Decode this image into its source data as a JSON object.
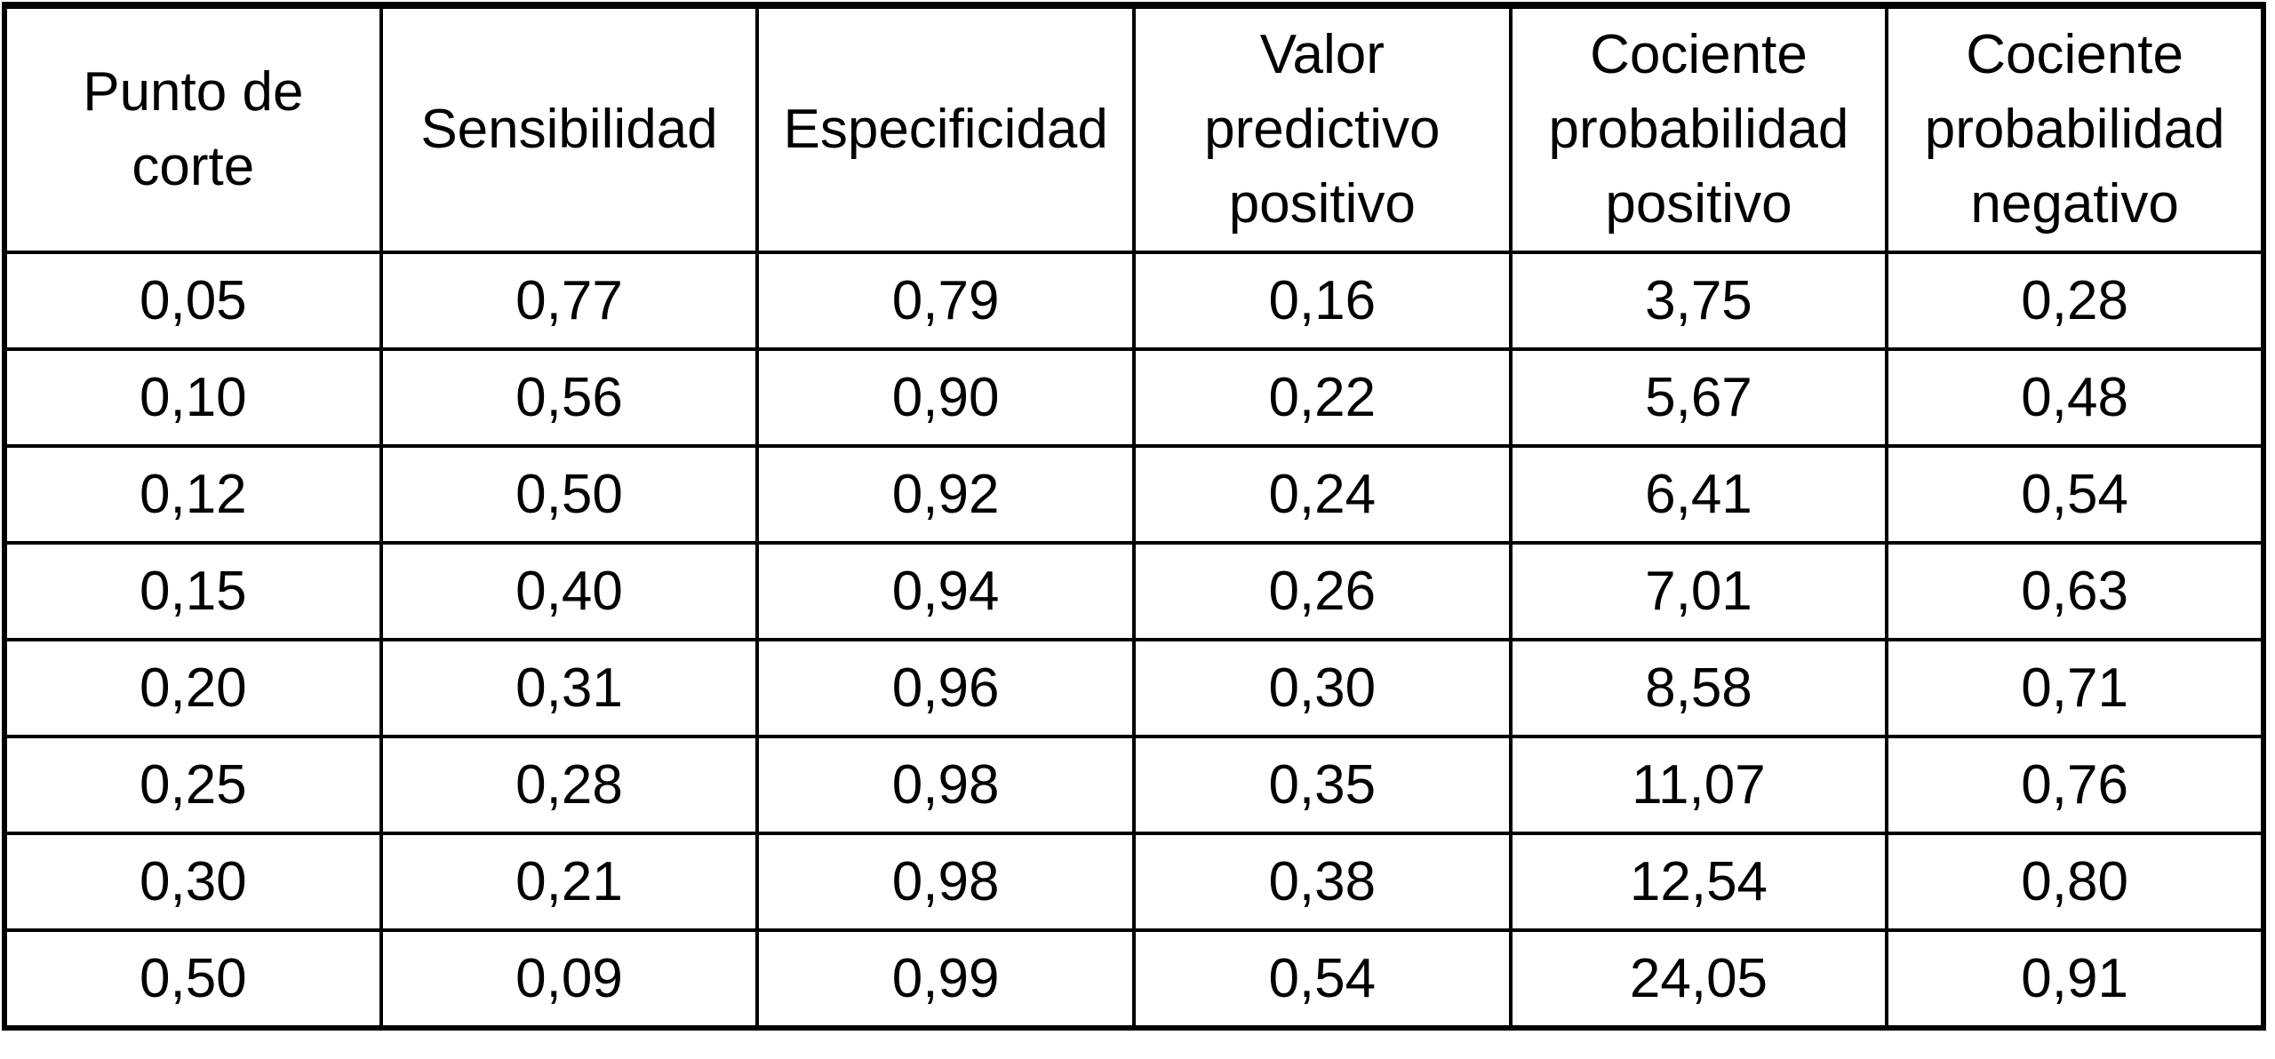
{
  "page": {
    "background_color": "#ffffff",
    "border_color": "#000000",
    "text_color": "#000000"
  },
  "chart_data": {
    "type": "table",
    "columns": [
      "Punto de\ncorte",
      "Sensibilidad",
      "Especificidad",
      "Valor\npredictivo\npositivo",
      "Cociente\nprobabilidad\npositivo",
      "Cociente\nprobabilidad\nnegativo"
    ],
    "rows": [
      [
        "0,05",
        "0,77",
        "0,79",
        "0,16",
        "3,75",
        "0,28"
      ],
      [
        "0,10",
        "0,56",
        "0,90",
        "0,22",
        "5,67",
        "0,48"
      ],
      [
        "0,12",
        "0,50",
        "0,92",
        "0,24",
        "6,41",
        "0,54"
      ],
      [
        "0,15",
        "0,40",
        "0,94",
        "0,26",
        "7,01",
        "0,63"
      ],
      [
        "0,20",
        "0,31",
        "0,96",
        "0,30",
        "8,58",
        "0,71"
      ],
      [
        "0,25",
        "0,28",
        "0,98",
        "0,35",
        "11,07",
        "0,76"
      ],
      [
        "0,30",
        "0,21",
        "0,98",
        "0,38",
        "12,54",
        "0,80"
      ],
      [
        "0,50",
        "0,09",
        "0,99",
        "0,54",
        "24,05",
        "0,91"
      ]
    ],
    "decimal_style": "comma",
    "grid": "all-borders",
    "layout_hint": "6 equal-width columns, header row ~2.5x data row height"
  }
}
